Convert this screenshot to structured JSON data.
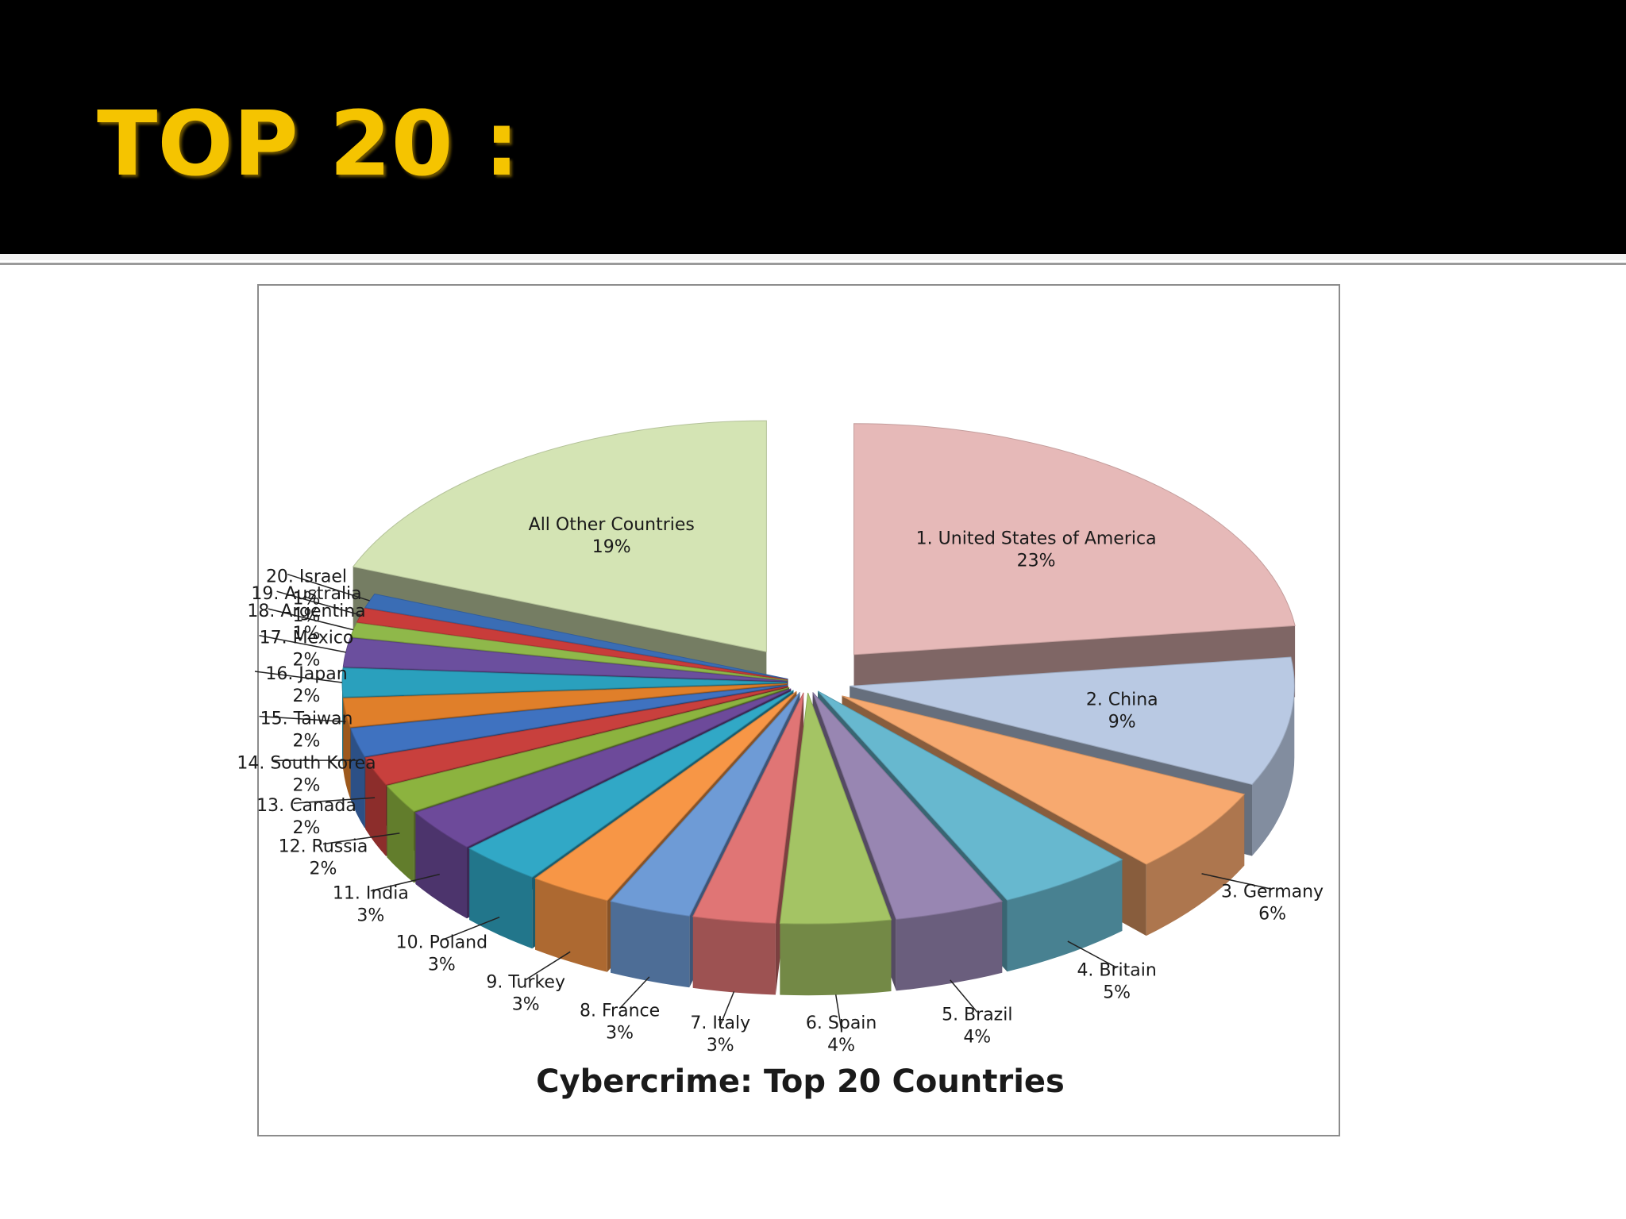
{
  "slide": {
    "title": "TOP 20 :"
  },
  "chart_data": {
    "type": "pie",
    "title": "Cybercrime: Top 20 Countries",
    "slices": [
      {
        "label": "1. United States of America",
        "value": 23,
        "pct": "23%",
        "color": "#e6b9b8"
      },
      {
        "label": "2. China",
        "value": 9,
        "pct": "9%",
        "color": "#b9c9e3"
      },
      {
        "label": "3. Germany",
        "value": 6,
        "pct": "6%",
        "color": "#f7a96f"
      },
      {
        "label": "4. Britain",
        "value": 5,
        "pct": "5%",
        "color": "#67b8cf"
      },
      {
        "label": "5. Brazil",
        "value": 4,
        "pct": "4%",
        "color": "#9886b2"
      },
      {
        "label": "6. Spain",
        "value": 4,
        "pct": "4%",
        "color": "#a4c464"
      },
      {
        "label": "7. Italy",
        "value": 3,
        "pct": "3%",
        "color": "#e07575"
      },
      {
        "label": "8. France",
        "value": 3,
        "pct": "3%",
        "color": "#6e9bd6"
      },
      {
        "label": "9. Turkey",
        "value": 3,
        "pct": "3%",
        "color": "#f79646"
      },
      {
        "label": "10. Poland",
        "value": 3,
        "pct": "3%",
        "color": "#31a8c6"
      },
      {
        "label": "11. India",
        "value": 3,
        "pct": "3%",
        "color": "#6d4a9a"
      },
      {
        "label": "12. Russia",
        "value": 2,
        "pct": "2%",
        "color": "#8cb33f"
      },
      {
        "label": "13. Canada",
        "value": 2,
        "pct": "2%",
        "color": "#c8403d"
      },
      {
        "label": "14. South Korea",
        "value": 2,
        "pct": "2%",
        "color": "#3f72c0"
      },
      {
        "label": "15. Taiwan",
        "value": 2,
        "pct": "2%",
        "color": "#e07f2a"
      },
      {
        "label": "16. Japan",
        "value": 2,
        "pct": "2%",
        "color": "#2aa0bd"
      },
      {
        "label": "17. Mexico",
        "value": 2,
        "pct": "2%",
        "color": "#6b4f9e"
      },
      {
        "label": "18. Argentina",
        "value": 1,
        "pct": "1%",
        "color": "#8fb84a"
      },
      {
        "label": "19. Australia",
        "value": 1,
        "pct": "1%",
        "color": "#c83c3a"
      },
      {
        "label": "20. Israel",
        "value": 1,
        "pct": "1%",
        "color": "#3a6db5"
      },
      {
        "label": "All Other Countries",
        "value": 19,
        "pct": "19%",
        "color": "#d4e4b4"
      }
    ]
  }
}
